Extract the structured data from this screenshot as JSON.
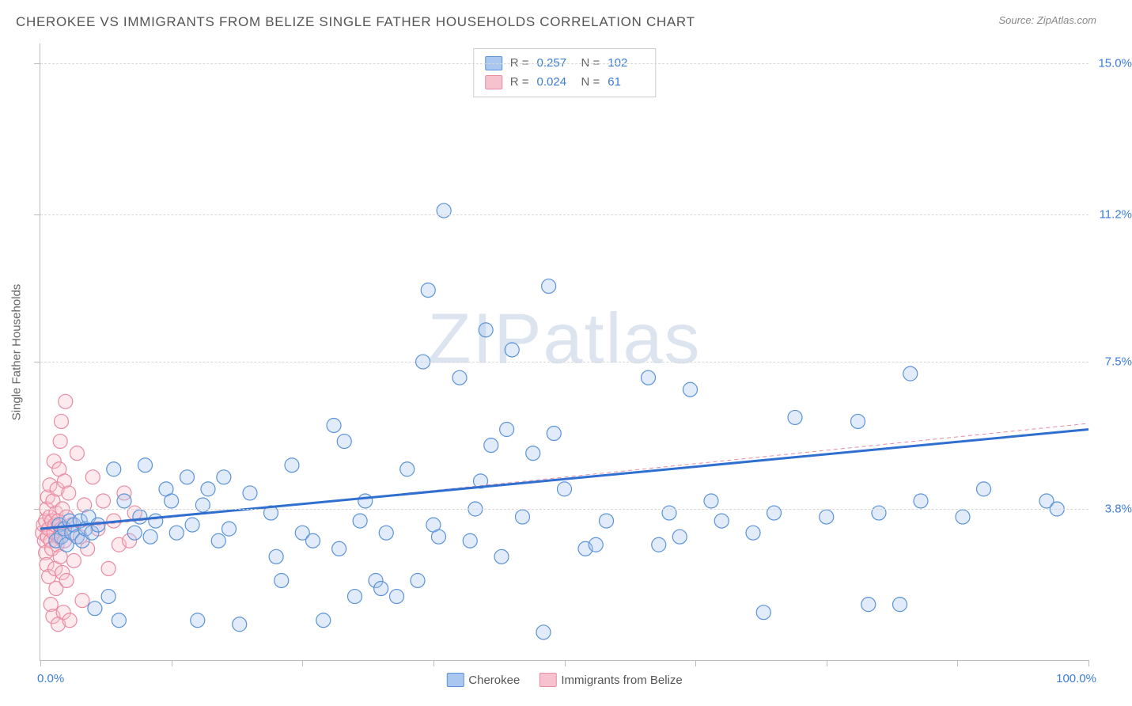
{
  "header": {
    "title": "CHEROKEE VS IMMIGRANTS FROM BELIZE SINGLE FATHER HOUSEHOLDS CORRELATION CHART",
    "source": "Source: ZipAtlas.com"
  },
  "chart": {
    "type": "scatter",
    "watermark": "ZIPatlas",
    "background_color": "#ffffff",
    "grid_color": "#d8d8d8",
    "axis_color": "#bbbbbb",
    "label_color": "#666666",
    "value_color": "#3b7dd8",
    "xlim": [
      0,
      100
    ],
    "ylim": [
      0,
      15.5
    ],
    "x_unit": "%",
    "y_unit": "%",
    "xlabel_min": "0.0%",
    "xlabel_max": "100.0%",
    "ylabel": "Single Father Households",
    "ytick_labels": [
      {
        "v": 3.8,
        "label": "3.8%"
      },
      {
        "v": 7.5,
        "label": "7.5%"
      },
      {
        "v": 11.2,
        "label": "11.2%"
      },
      {
        "v": 15.0,
        "label": "15.0%"
      }
    ],
    "xtick_positions": [
      0,
      12.5,
      25,
      37.5,
      50,
      62.5,
      75,
      87.5,
      100
    ],
    "marker_radius": 9,
    "marker_fill_opacity": 0.35,
    "marker_stroke_width": 1.2,
    "trend_line_width_blue": 3,
    "trend_line_width_pink": 1,
    "legend_top": {
      "rows": [
        {
          "swatch_fill": "#a9c7ef",
          "swatch_stroke": "#5a93d8",
          "r_label": "R =",
          "r_value": "0.257",
          "n_label": "N =",
          "n_value": "102"
        },
        {
          "swatch_fill": "#f6c2ce",
          "swatch_stroke": "#e98ba2",
          "r_label": "R =",
          "r_value": "0.024",
          "n_label": "N =",
          "n_value": "61"
        }
      ]
    },
    "legend_bottom": {
      "items": [
        {
          "swatch_fill": "#a9c7ef",
          "swatch_stroke": "#5a93d8",
          "label": "Cherokee"
        },
        {
          "swatch_fill": "#f6c2ce",
          "swatch_stroke": "#e98ba2",
          "label": "Immigrants from Belize"
        }
      ]
    },
    "series": [
      {
        "name": "Cherokee",
        "marker_fill": "#a9c7ef",
        "marker_stroke": "#5a93d8",
        "trend_color": "#2f6fd0",
        "trend_dash": "none",
        "trend": {
          "x1": 0,
          "y1": 3.3,
          "x2": 100,
          "y2": 5.8
        },
        "points": [
          [
            1.5,
            3.0
          ],
          [
            1.8,
            3.4
          ],
          [
            2.0,
            3.1
          ],
          [
            2.3,
            3.3
          ],
          [
            2.5,
            2.9
          ],
          [
            2.8,
            3.5
          ],
          [
            3.0,
            3.2
          ],
          [
            3.2,
            3.4
          ],
          [
            3.5,
            3.1
          ],
          [
            3.8,
            3.5
          ],
          [
            4.0,
            3.0
          ],
          [
            4.3,
            3.3
          ],
          [
            4.6,
            3.6
          ],
          [
            4.9,
            3.2
          ],
          [
            5.2,
            1.3
          ],
          [
            5.5,
            3.4
          ],
          [
            6.5,
            1.6
          ],
          [
            7.0,
            4.8
          ],
          [
            7.5,
            1.0
          ],
          [
            8.0,
            4.0
          ],
          [
            9.0,
            3.2
          ],
          [
            9.5,
            3.6
          ],
          [
            10.0,
            4.9
          ],
          [
            10.5,
            3.1
          ],
          [
            11.0,
            3.5
          ],
          [
            12.0,
            4.3
          ],
          [
            12.5,
            4.0
          ],
          [
            13.0,
            3.2
          ],
          [
            14.0,
            4.6
          ],
          [
            14.5,
            3.4
          ],
          [
            15.0,
            1.0
          ],
          [
            15.5,
            3.9
          ],
          [
            16.0,
            4.3
          ],
          [
            17.0,
            3.0
          ],
          [
            17.5,
            4.6
          ],
          [
            18.0,
            3.3
          ],
          [
            19.0,
            0.9
          ],
          [
            20.0,
            4.2
          ],
          [
            22.0,
            3.7
          ],
          [
            22.5,
            2.6
          ],
          [
            23.0,
            2.0
          ],
          [
            24.0,
            4.9
          ],
          [
            25.0,
            3.2
          ],
          [
            26.0,
            3.0
          ],
          [
            27.0,
            1.0
          ],
          [
            28.0,
            5.9
          ],
          [
            28.5,
            2.8
          ],
          [
            29.0,
            5.5
          ],
          [
            30.0,
            1.6
          ],
          [
            30.5,
            3.5
          ],
          [
            31.0,
            4.0
          ],
          [
            32.0,
            2.0
          ],
          [
            32.5,
            1.8
          ],
          [
            33.0,
            3.2
          ],
          [
            34.0,
            1.6
          ],
          [
            35.0,
            4.8
          ],
          [
            36.0,
            2.0
          ],
          [
            37.0,
            9.3
          ],
          [
            37.5,
            3.4
          ],
          [
            38.0,
            3.1
          ],
          [
            38.5,
            11.3
          ],
          [
            40.0,
            7.1
          ],
          [
            41.0,
            3.0
          ],
          [
            42.0,
            4.5
          ],
          [
            42.5,
            8.3
          ],
          [
            43.0,
            5.4
          ],
          [
            44.0,
            2.6
          ],
          [
            44.5,
            5.8
          ],
          [
            45.0,
            7.8
          ],
          [
            46.0,
            3.6
          ],
          [
            47.0,
            5.2
          ],
          [
            48.0,
            0.7
          ],
          [
            48.5,
            9.4
          ],
          [
            49.0,
            5.7
          ],
          [
            50.0,
            4.3
          ],
          [
            52.0,
            2.8
          ],
          [
            53.0,
            2.9
          ],
          [
            54.0,
            3.5
          ],
          [
            58.0,
            7.1
          ],
          [
            59.0,
            2.9
          ],
          [
            60.0,
            3.7
          ],
          [
            61.0,
            3.1
          ],
          [
            62.0,
            6.8
          ],
          [
            64.0,
            4.0
          ],
          [
            65.0,
            3.5
          ],
          [
            68.0,
            3.2
          ],
          [
            69.0,
            1.2
          ],
          [
            70.0,
            3.7
          ],
          [
            72.0,
            6.1
          ],
          [
            75.0,
            3.6
          ],
          [
            78.0,
            6.0
          ],
          [
            79.0,
            1.4
          ],
          [
            80.0,
            3.7
          ],
          [
            82.0,
            1.4
          ],
          [
            83.0,
            7.2
          ],
          [
            84.0,
            4.0
          ],
          [
            88.0,
            3.6
          ],
          [
            90.0,
            4.3
          ],
          [
            96.0,
            4.0
          ],
          [
            97.0,
            3.8
          ],
          [
            41.5,
            3.8
          ],
          [
            36.5,
            7.5
          ]
        ]
      },
      {
        "name": "Immigrants from Belize",
        "marker_fill": "#f6c2ce",
        "marker_stroke": "#e98ba2",
        "trend_color": "#e98ba2",
        "trend_dash": "5,4",
        "trend": {
          "x1": 0,
          "y1": 3.25,
          "x2": 100,
          "y2": 5.95
        },
        "points": [
          [
            0.2,
            3.2
          ],
          [
            0.3,
            3.4
          ],
          [
            0.4,
            3.0
          ],
          [
            0.5,
            2.7
          ],
          [
            0.5,
            3.5
          ],
          [
            0.6,
            3.8
          ],
          [
            0.6,
            2.4
          ],
          [
            0.7,
            3.1
          ],
          [
            0.7,
            4.1
          ],
          [
            0.8,
            3.3
          ],
          [
            0.8,
            2.1
          ],
          [
            0.9,
            3.6
          ],
          [
            0.9,
            4.4
          ],
          [
            1.0,
            3.0
          ],
          [
            1.0,
            1.4
          ],
          [
            1.1,
            2.8
          ],
          [
            1.1,
            3.5
          ],
          [
            1.2,
            4.0
          ],
          [
            1.2,
            1.1
          ],
          [
            1.3,
            3.2
          ],
          [
            1.3,
            5.0
          ],
          [
            1.4,
            2.3
          ],
          [
            1.4,
            3.4
          ],
          [
            1.5,
            1.8
          ],
          [
            1.5,
            3.7
          ],
          [
            1.6,
            4.3
          ],
          [
            1.6,
            2.9
          ],
          [
            1.7,
            3.5
          ],
          [
            1.7,
            0.9
          ],
          [
            1.8,
            4.8
          ],
          [
            1.8,
            3.1
          ],
          [
            1.9,
            5.5
          ],
          [
            1.9,
            2.6
          ],
          [
            2.0,
            3.3
          ],
          [
            2.0,
            6.0
          ],
          [
            2.1,
            2.2
          ],
          [
            2.1,
            3.8
          ],
          [
            2.2,
            1.2
          ],
          [
            2.3,
            4.5
          ],
          [
            2.3,
            3.0
          ],
          [
            2.4,
            6.5
          ],
          [
            2.5,
            2.0
          ],
          [
            2.5,
            3.6
          ],
          [
            2.7,
            4.2
          ],
          [
            2.8,
            1.0
          ],
          [
            3.0,
            3.4
          ],
          [
            3.2,
            2.5
          ],
          [
            3.5,
            5.2
          ],
          [
            3.8,
            3.1
          ],
          [
            4.0,
            1.5
          ],
          [
            4.2,
            3.9
          ],
          [
            4.5,
            2.8
          ],
          [
            5.0,
            4.6
          ],
          [
            5.5,
            3.3
          ],
          [
            6.0,
            4.0
          ],
          [
            6.5,
            2.3
          ],
          [
            7.0,
            3.5
          ],
          [
            7.5,
            2.9
          ],
          [
            8.0,
            4.2
          ],
          [
            8.5,
            3.0
          ],
          [
            9.0,
            3.7
          ]
        ]
      }
    ]
  }
}
